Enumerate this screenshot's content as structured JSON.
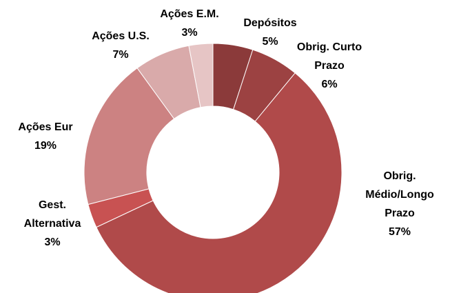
{
  "chart_data": {
    "type": "donut",
    "categories": [
      "Depósitos",
      "Obrig. Curto Prazo",
      "Obrig. Médio/Longo Prazo",
      "Gest. Alternativa",
      "Ações Eur",
      "Ações U.S.",
      "Ações E.M."
    ],
    "values": [
      5,
      6,
      57,
      3,
      19,
      7,
      3
    ],
    "value_labels": [
      "5%",
      "6%",
      "57%",
      "3%",
      "19%",
      "7%",
      "3%"
    ],
    "colors": [
      "#8b3a3a",
      "#9c4242",
      "#b04a4a",
      "#c85252",
      "#cc8282",
      "#d9aaaa",
      "#e6c5c5"
    ]
  }
}
